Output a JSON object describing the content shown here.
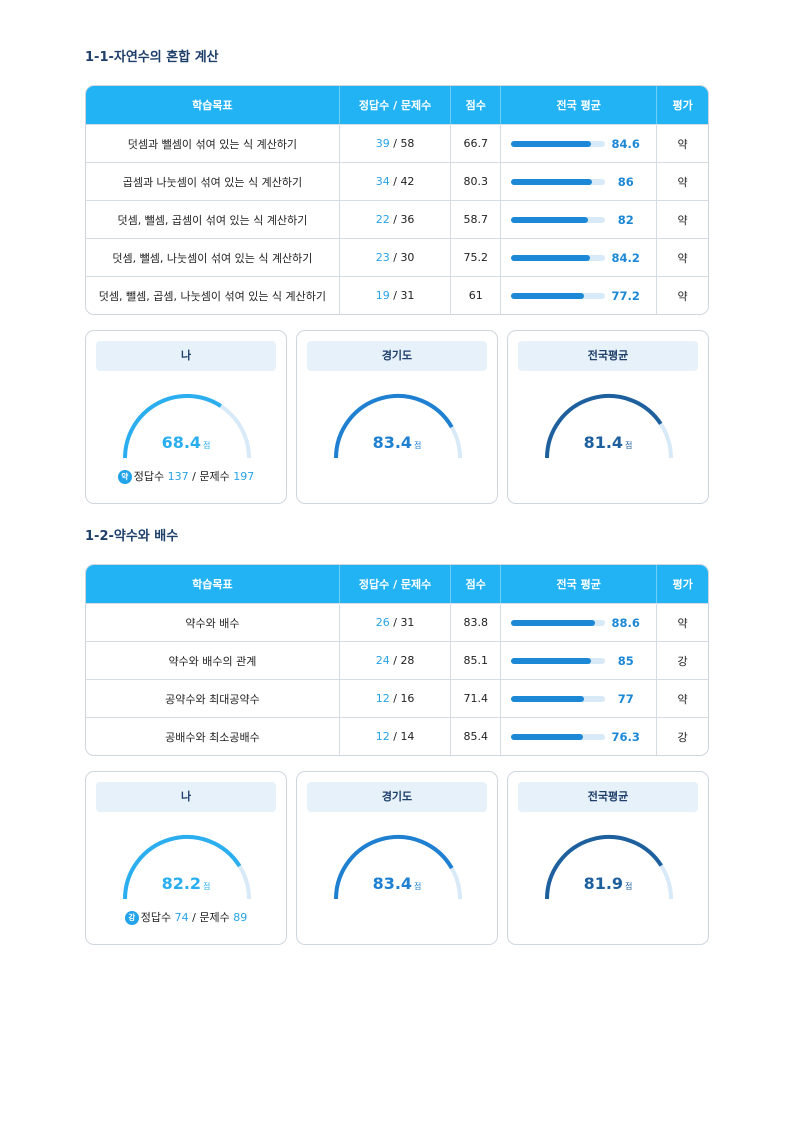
{
  "colors": {
    "header_bg": "#22b3f5",
    "my_gauge": "#2aaeef",
    "province_gauge": "#1f80d1",
    "national_gauge": "#1e5f9e",
    "gauge_track": "#d8e9f7"
  },
  "table_headers": [
    "학습목표",
    "정답수 / 문제수",
    "점수",
    "전국 평균",
    "평가"
  ],
  "sections": [
    {
      "title": "1-1-자연수의 혼합 계산",
      "rows": [
        {
          "goal": "덧셈과 뺄셈이 섞여 있는 식 계산하기",
          "correct": "39",
          "total": "58",
          "score": "66.7",
          "avg": "84.6",
          "grade": "약"
        },
        {
          "goal": "곱셈과 나눗셈이 섞여 있는 식 계산하기",
          "correct": "34",
          "total": "42",
          "score": "80.3",
          "avg": "86",
          "grade": "약"
        },
        {
          "goal": "덧셈, 뺄셈, 곱셈이 섞여 있는 식 계산하기",
          "correct": "22",
          "total": "36",
          "score": "58.7",
          "avg": "82",
          "grade": "약"
        },
        {
          "goal": "덧셈, 뺄셈, 나눗셈이 섞여 있는 식 계산하기",
          "correct": "23",
          "total": "30",
          "score": "75.2",
          "avg": "84.2",
          "grade": "약"
        },
        {
          "goal": "덧셈, 뺄셈, 곱셈, 나눗셈이 섞여 있는 식 계산하기",
          "correct": "19",
          "total": "31",
          "score": "61",
          "avg": "77.2",
          "grade": "약"
        }
      ],
      "cards": [
        {
          "label": "나",
          "score": "68.4",
          "unit": "점",
          "badge": "약",
          "correct_label": "정답수",
          "correct": "137",
          "total_label": "문제수",
          "total": "197"
        },
        {
          "label": "경기도",
          "score": "83.4",
          "unit": "점"
        },
        {
          "label": "전국평균",
          "score": "81.4",
          "unit": "점"
        }
      ]
    },
    {
      "title": "1-2-약수와 배수",
      "rows": [
        {
          "goal": "약수와 배수",
          "correct": "26",
          "total": "31",
          "score": "83.8",
          "avg": "88.6",
          "grade": "약"
        },
        {
          "goal": "약수와 배수의 관계",
          "correct": "24",
          "total": "28",
          "score": "85.1",
          "avg": "85",
          "grade": "강"
        },
        {
          "goal": "공약수와 최대공약수",
          "correct": "12",
          "total": "16",
          "score": "71.4",
          "avg": "77",
          "grade": "약"
        },
        {
          "goal": "공배수와 최소공배수",
          "correct": "12",
          "total": "14",
          "score": "85.4",
          "avg": "76.3",
          "grade": "강"
        }
      ],
      "cards": [
        {
          "label": "나",
          "score": "82.2",
          "unit": "점",
          "badge": "강",
          "correct_label": "정답수",
          "correct": "74",
          "total_label": "문제수",
          "total": "89"
        },
        {
          "label": "경기도",
          "score": "83.4",
          "unit": "점"
        },
        {
          "label": "전국평균",
          "score": "81.9",
          "unit": "점"
        }
      ]
    }
  ]
}
